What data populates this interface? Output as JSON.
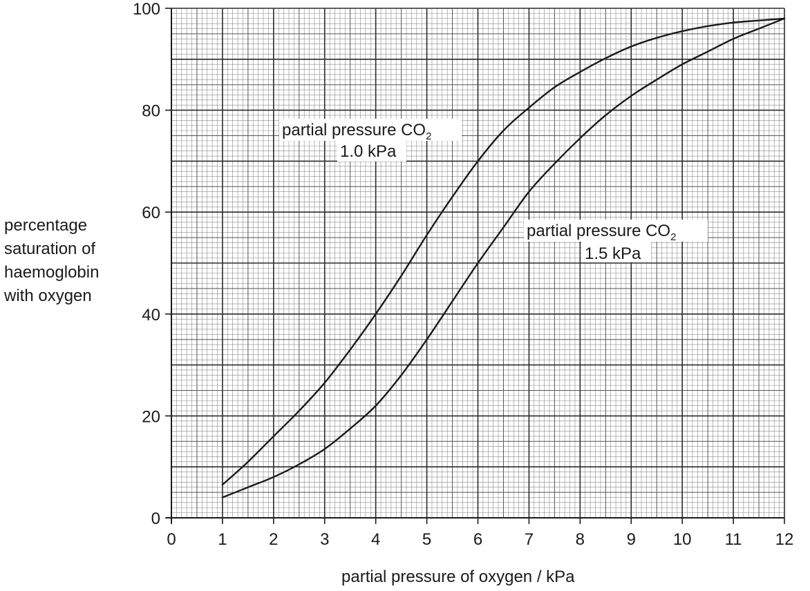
{
  "chart_data": {
    "type": "line",
    "title": "",
    "xlabel": "partial pressure of oxygen / kPa",
    "ylabel_lines": [
      "percentage",
      "saturation of",
      "haemoglobin",
      "with oxygen"
    ],
    "xlim": [
      0,
      12
    ],
    "ylim": [
      0,
      100
    ],
    "x_ticks": [
      "0",
      "1",
      "2",
      "3",
      "4",
      "5",
      "6",
      "7",
      "8",
      "9",
      "10",
      "11",
      "12"
    ],
    "y_ticks": [
      "0",
      "20",
      "40",
      "60",
      "80",
      "100"
    ],
    "grid": true,
    "series": [
      {
        "label_main": "partial pressure CO",
        "label_sub": "2",
        "label_value": "1.0 kPa",
        "x": [
          1,
          1.5,
          2,
          2.5,
          3,
          3.5,
          4,
          4.5,
          5,
          5.5,
          6,
          6.5,
          7,
          7.5,
          8,
          8.5,
          9,
          9.5,
          10,
          10.5,
          11,
          11.5,
          12
        ],
        "y": [
          6.5,
          11,
          16,
          21,
          26.5,
          33,
          40,
          47.5,
          55.5,
          63,
          70,
          76,
          80.5,
          84.5,
          87.5,
          90.2,
          92.5,
          94.2,
          95.5,
          96.5,
          97.2,
          97.6,
          98
        ]
      },
      {
        "label_main": "partial pressure CO",
        "label_sub": "2",
        "label_value": "1.5 kPa",
        "x": [
          1,
          1.5,
          2,
          2.5,
          3,
          3.5,
          4,
          4.5,
          5,
          5.5,
          6,
          6.5,
          7,
          7.5,
          8,
          8.5,
          9,
          9.5,
          10,
          10.5,
          11,
          11.5,
          12
        ],
        "y": [
          4,
          6,
          8,
          10.5,
          13.5,
          17.5,
          22,
          28,
          35,
          42.5,
          50,
          57,
          64,
          69.5,
          74.5,
          79,
          82.8,
          86,
          89,
          91.5,
          94,
          96,
          98
        ]
      }
    ]
  }
}
